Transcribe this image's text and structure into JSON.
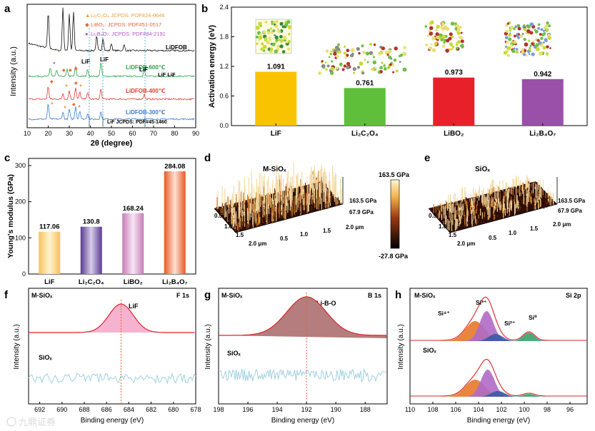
{
  "panel_letters": {
    "a": "a",
    "b": "b",
    "c": "c",
    "d": "d",
    "e": "e",
    "f": "f",
    "g": "g",
    "h": "h"
  },
  "watermark": "九鼎证券",
  "panel_a": {
    "ylabel": "Intensity (a.u.)",
    "xlabel": "2θ (degree)",
    "xticks": [
      "10",
      "20",
      "30",
      "40",
      "50",
      "60",
      "70",
      "80",
      "90"
    ],
    "legend": [
      {
        "symbol": "▲",
        "text": "Li₂C₂O₄ JCPDS: PDF#24-0646",
        "color": "#e8a13a"
      },
      {
        "symbol": "◆",
        "text": "LiBO₂: JCPDS: PDF#51-0517",
        "color": "#e8643a"
      },
      {
        "symbol": "●",
        "text": "Li₂B₄O₇: JCPDS: PDF#84-2191",
        "color": "#b64fc8"
      }
    ],
    "trace_labels": [
      {
        "text": "LiDFOB",
        "color": "#111111"
      },
      {
        "text": "LiDFOB-600℃",
        "color": "#2ca24a"
      },
      {
        "text": "LiDFOB-400℃",
        "color": "#e23a2f"
      },
      {
        "text": "LiDFOB-300℃",
        "color": "#3b7bd1"
      }
    ],
    "annotations": {
      "lif1": "LiF",
      "lif2": "LiF",
      "lif3": "LiF",
      "liflif": "LiF LiF"
    },
    "ref": "LiF JCPDS: PDF#45-1460"
  },
  "panel_b": {
    "ylabel": "Activation energy (eV)",
    "yticks": [
      "0.0",
      "0.6",
      "1.2",
      "1.8",
      "2.4"
    ],
    "chart_data": {
      "type": "bar",
      "categories": [
        "LiF",
        "Li₂C₂O₄",
        "LiBO₂",
        "Li₂B₄O₇"
      ],
      "values": [
        1.091,
        0.761,
        0.973,
        0.942
      ],
      "value_labels": [
        "1.091",
        "0.761",
        "0.973",
        "0.942"
      ],
      "ylim": [
        0,
        2.4
      ],
      "colors": [
        "#f9c300",
        "#5fbf3a",
        "#e8202a",
        "#9a4fa8"
      ]
    }
  },
  "panel_c": {
    "ylabel": "Young's modulus (GPa)",
    "yticks": [
      "0",
      "100",
      "200",
      "300"
    ],
    "chart_data": {
      "type": "bar",
      "categories": [
        "LiF",
        "Li₂C₂O₄",
        "LiBO₂",
        "Li₂B₄O₇"
      ],
      "values": [
        117.06,
        130.8,
        168.24,
        284.08
      ],
      "value_labels": [
        "117.06",
        "130.8",
        "168.24",
        "284.08"
      ],
      "ylim": [
        0,
        300
      ],
      "colors": [
        "#f6c25a",
        "#6d4fa0",
        "#d596cc",
        "#e96a3a"
      ]
    }
  },
  "panel_d": {
    "title": "M-SiOₓ",
    "z1": "163.5 GPa",
    "z2": "67.9 GPa",
    "x_ticks": [
      "0.5",
      "1.0",
      "1.5",
      "2.0 μm"
    ],
    "y_ticks": [
      "0.5",
      "1.0",
      "1.5",
      "2.0 μm"
    ]
  },
  "panel_e": {
    "title": "SiOₓ",
    "z1": "163.5 GPa",
    "z2": "67.9 GPa",
    "x_ticks": [
      "0.5",
      "1.0",
      "1.5",
      "2.0 μm"
    ],
    "y_ticks": [
      "0.5",
      "1.0",
      "1.5",
      "2.0 μm"
    ]
  },
  "colorbar": {
    "max": "163.5 GPa",
    "min": "-27.8 GPa"
  },
  "panel_f": {
    "sample": "M-SiOₓ",
    "sample2": "SiOₓ",
    "peak": "LiF",
    "region": "F 1s",
    "ylabel": "Intensity (a.u.)",
    "xlabel": "Binding energy (eV)",
    "xticks": [
      "692",
      "690",
      "688",
      "686",
      "684",
      "682",
      "680",
      "678"
    ]
  },
  "panel_g": {
    "sample": "M-SiOₓ",
    "sample2": "SiOₓ",
    "peak": "Li-B-O",
    "region": "B 1s",
    "ylabel": "Intensity (a.u.)",
    "xlabel": "Binding energy (eV)",
    "xticks": [
      "198",
      "196",
      "194",
      "192",
      "190",
      "188"
    ]
  },
  "panel_h": {
    "sample": "M-SiOₓ",
    "sample2": "SiOₓ",
    "region": "Si 2p",
    "ylabel": "Intensity (a.u.)",
    "xlabel": "Binding energy (eV)",
    "xticks": [
      "110",
      "108",
      "106",
      "104",
      "102",
      "100",
      "98",
      "96"
    ],
    "peaks": [
      "Si⁴⁺",
      "Si³⁺",
      "Si²⁺",
      "Si⁰"
    ]
  }
}
